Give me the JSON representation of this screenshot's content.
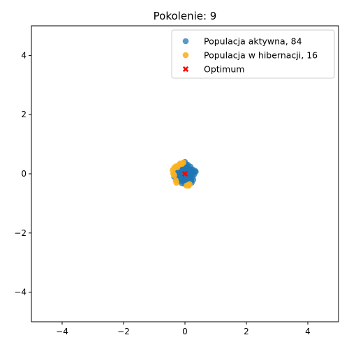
{
  "chart_data": {
    "type": "scatter",
    "title": "Pokolenie: 9",
    "xlabel": "",
    "ylabel": "",
    "xlim": [
      -5,
      5
    ],
    "ylim": [
      -5,
      5
    ],
    "xticks": [
      -4,
      -2,
      0,
      2,
      4
    ],
    "yticks": [
      -4,
      -2,
      0,
      2,
      4
    ],
    "xtick_labels": [
      "−4",
      "−2",
      "0",
      "2",
      "4"
    ],
    "ytick_labels": [
      "−4",
      "−2",
      "0",
      "2",
      "4"
    ],
    "grid": false,
    "legend_position": "top-right",
    "series": [
      {
        "name": "Populacja aktywna, 84",
        "color": "#1f77b4",
        "marker": "circle",
        "alpha": 0.75,
        "points": [
          [
            0.0,
            0.4
          ],
          [
            -0.05,
            0.35
          ],
          [
            0.05,
            0.32
          ],
          [
            0.3,
            0.05
          ],
          [
            0.35,
            0.07
          ],
          [
            0.15,
            0.1
          ],
          [
            0.1,
            0.15
          ],
          [
            0.05,
            0.2
          ],
          [
            -0.1,
            0.25
          ],
          [
            -0.15,
            0.2
          ],
          [
            -0.2,
            0.1
          ],
          [
            -0.25,
            0.05
          ],
          [
            -0.3,
            -0.05
          ],
          [
            -0.35,
            -0.1
          ],
          [
            -0.3,
            -0.15
          ],
          [
            -0.2,
            -0.2
          ],
          [
            -0.1,
            -0.25
          ],
          [
            0.0,
            -0.3
          ],
          [
            0.05,
            -0.25
          ],
          [
            0.1,
            -0.2
          ],
          [
            0.2,
            -0.25
          ],
          [
            0.22,
            -0.3
          ],
          [
            0.15,
            -0.3
          ],
          [
            0.0,
            0.0
          ],
          [
            0.05,
            0.05
          ],
          [
            -0.05,
            -0.05
          ],
          [
            0.1,
            -0.05
          ],
          [
            -0.1,
            0.05
          ],
          [
            0.15,
            0.0
          ],
          [
            -0.15,
            0.0
          ],
          [
            0.0,
            0.1
          ],
          [
            0.0,
            -0.1
          ],
          [
            0.08,
            0.12
          ],
          [
            -0.08,
            -0.12
          ],
          [
            0.12,
            -0.1
          ],
          [
            -0.12,
            0.1
          ],
          [
            0.2,
            0.05
          ],
          [
            -0.2,
            -0.05
          ],
          [
            0.05,
            0.18
          ],
          [
            -0.05,
            -0.18
          ],
          [
            0.18,
            -0.08
          ],
          [
            -0.18,
            0.08
          ],
          [
            0.25,
            -0.1
          ],
          [
            -0.25,
            0.12
          ],
          [
            0.02,
            0.25
          ],
          [
            -0.02,
            -0.22
          ],
          [
            0.12,
            0.2
          ],
          [
            -0.12,
            -0.2
          ],
          [
            0.25,
            0.15
          ],
          [
            -0.28,
            0.0
          ],
          [
            0.1,
            0.3
          ],
          [
            -0.1,
            -0.32
          ],
          [
            0.3,
            -0.02
          ],
          [
            0.06,
            -0.15
          ],
          [
            -0.06,
            0.15
          ],
          [
            0.16,
            0.16
          ],
          [
            -0.16,
            -0.16
          ],
          [
            0.2,
            -0.18
          ],
          [
            -0.2,
            0.18
          ],
          [
            0.04,
            0.02
          ],
          [
            -0.04,
            0.03
          ],
          [
            0.09,
            -0.02
          ],
          [
            -0.09,
            -0.03
          ],
          [
            0.13,
            0.07
          ],
          [
            -0.13,
            -0.07
          ],
          [
            0.22,
            0.12
          ],
          [
            -0.22,
            -0.12
          ],
          [
            0.07,
            -0.28
          ],
          [
            -0.07,
            0.28
          ],
          [
            0.18,
            0.24
          ],
          [
            -0.18,
            -0.24
          ],
          [
            0.27,
            -0.2
          ],
          [
            -0.27,
            0.2
          ],
          [
            0.01,
            0.33
          ],
          [
            -0.01,
            -0.34
          ],
          [
            0.33,
            0.1
          ],
          [
            -0.33,
            -0.02
          ],
          [
            0.14,
            -0.22
          ],
          [
            -0.14,
            0.22
          ],
          [
            0.24,
            0.0
          ],
          [
            -0.24,
            0.03
          ],
          [
            0.11,
            0.09
          ],
          [
            -0.11,
            -0.09
          ],
          [
            0.03,
            -0.07
          ]
        ]
      },
      {
        "name": "Populacja w hibernacji, 16",
        "color": "#fbb120",
        "marker": "circle",
        "alpha": 0.9,
        "points": [
          [
            -0.05,
            0.38
          ],
          [
            -0.1,
            0.33
          ],
          [
            -0.2,
            0.3
          ],
          [
            -0.3,
            0.25
          ],
          [
            -0.35,
            0.2
          ],
          [
            -0.4,
            0.12
          ],
          [
            -0.38,
            0.0
          ],
          [
            -0.35,
            -0.05
          ],
          [
            -0.3,
            -0.22
          ],
          [
            -0.28,
            -0.3
          ],
          [
            0.1,
            -0.38
          ],
          [
            0.15,
            -0.35
          ],
          [
            0.12,
            -0.4
          ],
          [
            -0.25,
            0.22
          ],
          [
            0.05,
            -0.4
          ],
          [
            -0.15,
            0.35
          ]
        ]
      },
      {
        "name": "Optimum",
        "color": "#ff0000",
        "marker": "x",
        "points": [
          [
            0.0,
            0.0
          ]
        ]
      }
    ]
  }
}
